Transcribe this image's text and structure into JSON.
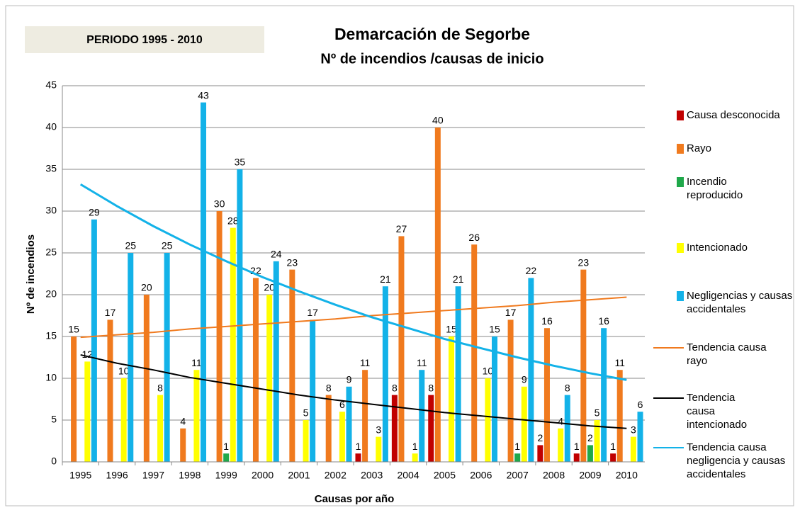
{
  "chart_data": {
    "type": "bar",
    "title": "Demarcación de Segorbe",
    "subtitle": "Nº de incendios /causas de inicio",
    "annotation": "PERIODO 1995 - 2010",
    "x_label": "Causas por año",
    "y_label": "Nº de incendios",
    "categories": [
      "1995",
      "1996",
      "1997",
      "1998",
      "1999",
      "2000",
      "2001",
      "2002",
      "2003",
      "2004",
      "2005",
      "2006",
      "2007",
      "2008",
      "2009",
      "2010"
    ],
    "ylim": [
      0,
      45
    ],
    "yticks": [
      0,
      5,
      10,
      15,
      20,
      25,
      30,
      35,
      40,
      45
    ],
    "grid": true,
    "series": [
      {
        "name": "Causa desconocida",
        "color": "#c00000",
        "values": [
          null,
          null,
          null,
          null,
          null,
          null,
          null,
          null,
          1,
          8,
          8,
          null,
          null,
          2,
          1,
          1
        ]
      },
      {
        "name": "Rayo",
        "color": "#f07a1e",
        "values": [
          15,
          17,
          20,
          4,
          30,
          22,
          23,
          8,
          11,
          27,
          40,
          26,
          17,
          16,
          23,
          11
        ]
      },
      {
        "name": "Incendio reproducido",
        "color": "#1fa84a",
        "values": [
          null,
          null,
          null,
          null,
          1,
          null,
          null,
          null,
          null,
          null,
          null,
          null,
          1,
          null,
          2,
          null
        ]
      },
      {
        "name": "Intencionado",
        "color": "#ffff00",
        "values": [
          12,
          10,
          8,
          11,
          28,
          20,
          5,
          6,
          3,
          1,
          15,
          10,
          9,
          4,
          5,
          3
        ]
      },
      {
        "name": "Negligencias y causas accidentales",
        "color": "#13b2e8",
        "values": [
          29,
          25,
          25,
          43,
          35,
          24,
          17,
          9,
          21,
          11,
          21,
          15,
          22,
          8,
          16,
          6
        ]
      },
      {
        "name": "Tendencia causa rayo",
        "type": "line",
        "color": "#f07a1e",
        "values": [
          14.9,
          15.2,
          15.5,
          15.9,
          16.2,
          16.5,
          16.8,
          17.1,
          17.5,
          17.8,
          18.1,
          18.4,
          18.7,
          19.1,
          19.4,
          19.7
        ]
      },
      {
        "name": "Tendencia causa intencionado",
        "type": "line",
        "color": "#000000",
        "values": [
          12.8,
          11.8,
          11.0,
          10.1,
          9.4,
          8.7,
          8.0,
          7.4,
          6.9,
          6.4,
          5.9,
          5.5,
          5.1,
          4.7,
          4.3,
          4.0
        ]
      },
      {
        "name": "Tendencia causa negligencia y causas accidentales",
        "type": "line",
        "color": "#13b2e8",
        "values": [
          33.2,
          30.6,
          28.2,
          26.0,
          24.0,
          22.1,
          20.4,
          18.8,
          17.3,
          16.0,
          14.7,
          13.6,
          12.5,
          11.5,
          10.6,
          9.8
        ]
      }
    ]
  }
}
